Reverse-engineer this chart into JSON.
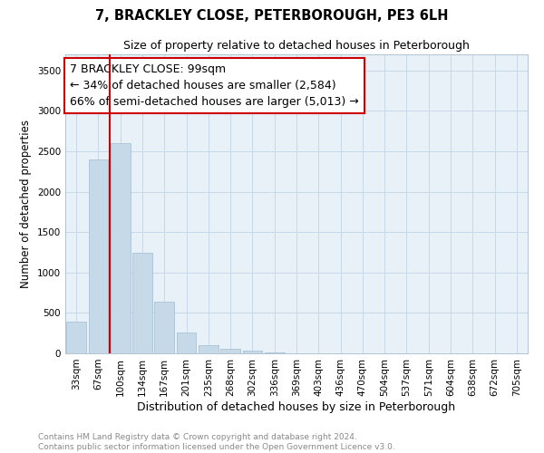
{
  "title": "7, BRACKLEY CLOSE, PETERBOROUGH, PE3 6LH",
  "subtitle": "Size of property relative to detached houses in Peterborough",
  "xlabel": "Distribution of detached houses by size in Peterborough",
  "ylabel": "Number of detached properties",
  "categories": [
    "33sqm",
    "67sqm",
    "100sqm",
    "134sqm",
    "167sqm",
    "201sqm",
    "235sqm",
    "268sqm",
    "302sqm",
    "336sqm",
    "369sqm",
    "403sqm",
    "436sqm",
    "470sqm",
    "504sqm",
    "537sqm",
    "571sqm",
    "604sqm",
    "638sqm",
    "672sqm",
    "705sqm"
  ],
  "values": [
    390,
    2400,
    2600,
    1240,
    640,
    255,
    100,
    55,
    30,
    15,
    0,
    0,
    0,
    0,
    0,
    0,
    0,
    0,
    0,
    0,
    0
  ],
  "bar_color": "#c5d9e8",
  "bar_edge_color": "#a0bdd0",
  "annotation_box_text_line1": "7 BRACKLEY CLOSE: 99sqm",
  "annotation_box_text_line2": "← 34% of detached houses are smaller (2,584)",
  "annotation_box_text_line3": "66% of semi-detached houses are larger (5,013) →",
  "vline_x": 2.0,
  "vline_color": "#cc0000",
  "ylim": [
    0,
    3700
  ],
  "yticks": [
    0,
    500,
    1000,
    1500,
    2000,
    2500,
    3000,
    3500
  ],
  "footer_line1": "Contains HM Land Registry data © Crown copyright and database right 2024.",
  "footer_line2": "Contains public sector information licensed under the Open Government Licence v3.0.",
  "title_fontsize": 10.5,
  "subtitle_fontsize": 9,
  "xlabel_fontsize": 9,
  "ylabel_fontsize": 8.5,
  "tick_fontsize": 7.5,
  "annotation_fontsize": 9,
  "footer_fontsize": 6.5,
  "grid_color": "#c8d8e8",
  "background_color": "#ffffff",
  "plot_bg_color": "#e8f0f8"
}
